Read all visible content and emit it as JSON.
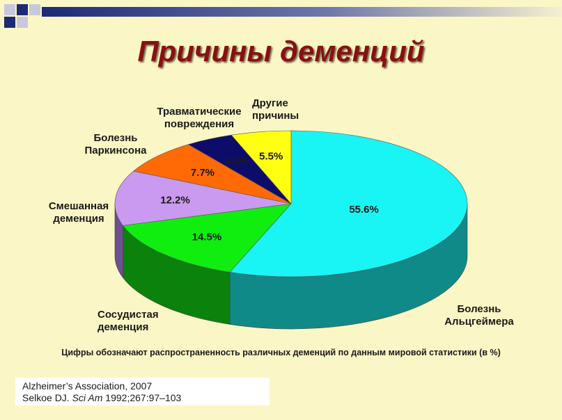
{
  "slide": {
    "title": "Причины деменций",
    "caption": "Цифры обозначают распространенность различных деменций по данным мировой статистики (в %)",
    "references": {
      "line1": "Alzheimer’s Association, 2007",
      "line2_prefix": "Selkoe DJ. ",
      "line2_journal": "Sci Am",
      "line2_suffix": " 1992;267:97–103"
    }
  },
  "chart_data": {
    "type": "pie",
    "title": "Причины деменций",
    "slices": [
      {
        "label": "Болезнь Альцгеймера",
        "value": 55.6,
        "value_label": "55.6%",
        "color": "#19f5f5",
        "side_color": "#0f8a88"
      },
      {
        "label": "Сосудистая деменция",
        "value": 14.5,
        "value_label": "14.5%",
        "color": "#10ee10",
        "side_color": "#0b820b"
      },
      {
        "label": "Смешанная деменция",
        "value": 12.2,
        "value_label": "12.2%",
        "color": "#c99aef",
        "side_color": "#6e4f90"
      },
      {
        "label": "Болезнь Паркинсона",
        "value": 7.7,
        "value_label": "7.7%",
        "color": "#ff6a06",
        "side_color": "#8a3a05"
      },
      {
        "label": "Травматические повреждения",
        "value": 4.4,
        "value_label": "4.4%",
        "color": "#0e0c6a",
        "side_color": "#06053a"
      },
      {
        "label": "Другие причины",
        "value": 5.5,
        "value_label": "5.5%",
        "color": "#ffff12",
        "side_color": "#8f8f05"
      }
    ]
  }
}
